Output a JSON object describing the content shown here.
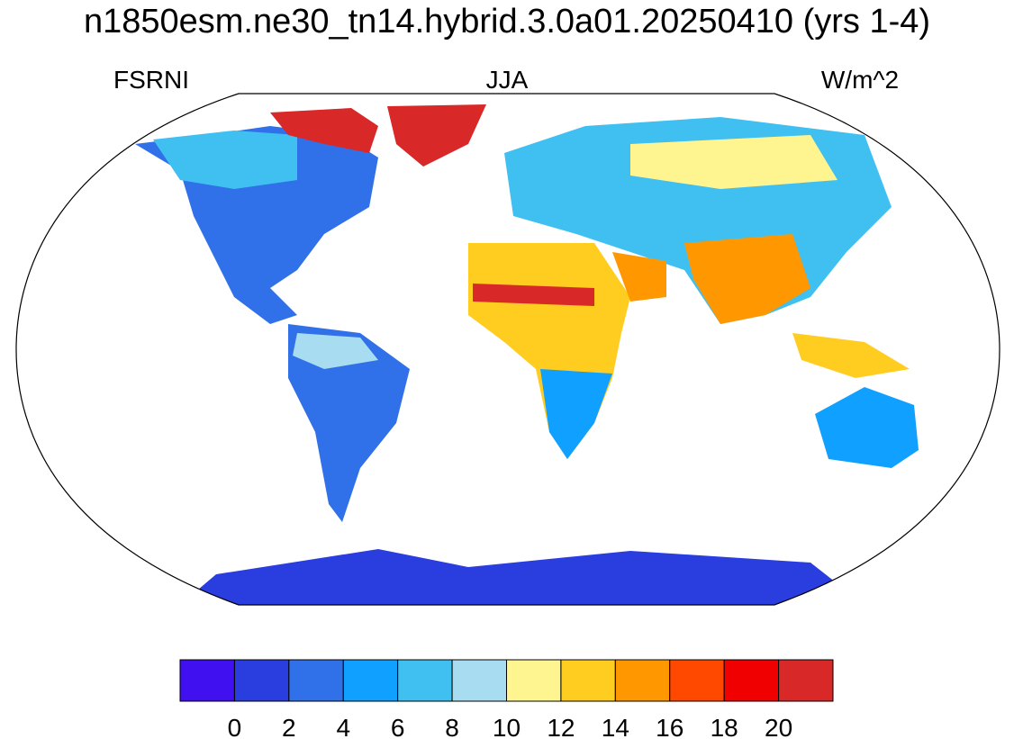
{
  "title": "n1850esm.ne30_tn14.hybrid.3.0a01.20250410 (yrs 1-4)",
  "labels": {
    "left": "FSRNI",
    "center": "JJA",
    "right": "W/m^2"
  },
  "colorbar": {
    "colors": [
      "#4010f0",
      "#2a3ee0",
      "#3070e8",
      "#10a0ff",
      "#40c0f0",
      "#a8dcf0",
      "#fff590",
      "#ffcc20",
      "#ff9800",
      "#ff4800",
      "#f00000",
      "#d82828"
    ],
    "ticks": [
      0,
      2,
      4,
      6,
      8,
      10,
      12,
      14,
      16,
      18,
      20
    ]
  }
}
